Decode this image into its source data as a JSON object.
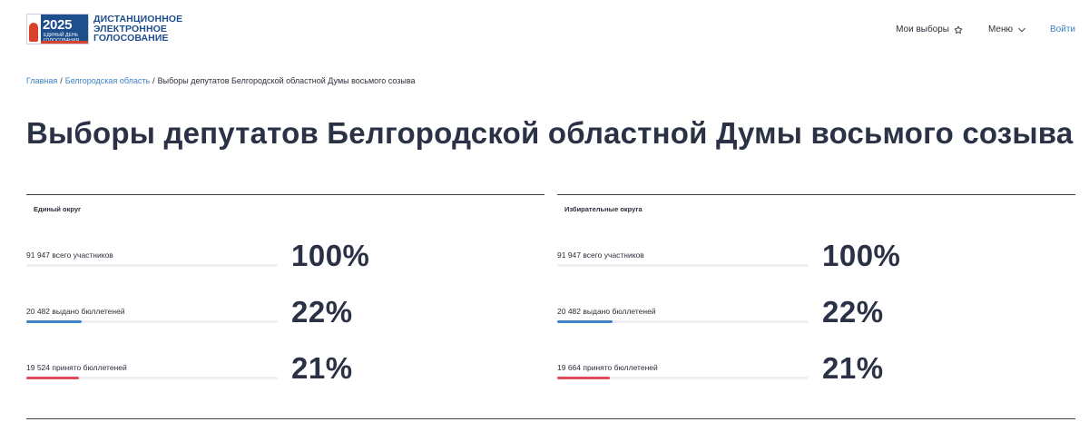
{
  "logo": {
    "year": "2025",
    "day": "ЕДИНЫЙ ДЕНЬ\nГОЛОСОВАНИЯ",
    "line1": "ДИСТАНЦИОННОЕ",
    "line2": "ЭЛЕКТРОННОЕ",
    "line3": "ГОЛОСОВАНИЕ",
    "icon": "flame-emblem-icon"
  },
  "nav": {
    "my_elections": "Мои выборы",
    "my_elections_icon": "star-icon",
    "menu": "Меню",
    "menu_icon": "chevron-down-icon",
    "login": "Войти"
  },
  "breadcrumb": {
    "home": "Главная",
    "region": "Белгородская область",
    "current": "Выборы депутатов Белгородской областной Думы восьмого созыва",
    "separator": "/"
  },
  "page_title": "Выборы депутатов Белгородской областной Думы восьмого созыва",
  "colors": {
    "accent": "#3d7fc4",
    "issued": "#3d85c6",
    "accepted": "#e24b5b",
    "track": "#eeeff2",
    "title": "#2b3245"
  },
  "panels": [
    {
      "title": "Единый округ",
      "rows": [
        {
          "label": "91 947 всего участников",
          "percent": "100%",
          "fraction": 0.0,
          "kind": "total"
        },
        {
          "label": "20 482 выдано бюллетеней",
          "percent": "22%",
          "fraction": 0.22,
          "kind": "issued"
        },
        {
          "label": "19 524 принято бюллетеней",
          "percent": "21%",
          "fraction": 0.21,
          "kind": "accepted"
        }
      ]
    },
    {
      "title": "Избирательные округа",
      "rows": [
        {
          "label": "91 947 всего участников",
          "percent": "100%",
          "fraction": 0.0,
          "kind": "total"
        },
        {
          "label": "20 482 выдано бюллетеней",
          "percent": "22%",
          "fraction": 0.22,
          "kind": "issued"
        },
        {
          "label": "19 664 принято бюллетеней",
          "percent": "21%",
          "fraction": 0.21,
          "kind": "accepted"
        }
      ]
    }
  ]
}
